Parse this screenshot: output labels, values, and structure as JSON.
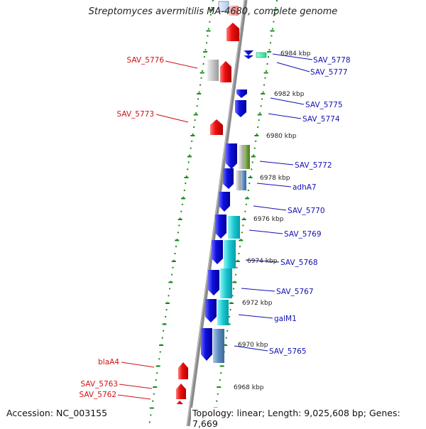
{
  "title": "Streptomyces avermitilis MA-4680, complete genome",
  "footer": {
    "accession": "Accession: NC_003155",
    "topology": "Topology: linear; Length: 9,025,608 bp; Genes: 7,669"
  },
  "ticks": [
    "6984 kbp",
    "6982 kbp",
    "6980 kbp",
    "6978 kbp",
    "6976 kbp",
    "6974 kbp",
    "6972 kbp",
    "6970 kbp",
    "6968 kbp"
  ],
  "left_labels": [
    "SAV_5776",
    "SAV_5773",
    "blaA4",
    "SAV_5763",
    "SAV_5762"
  ],
  "right_labels": [
    "SAV_5778",
    "SAV_5777",
    "SAV_5775",
    "SAV_5774",
    "SAV_5772",
    "adhA7",
    "SAV_5770",
    "SAV_5769",
    "SAV_5768",
    "SAV_5767",
    "galM1",
    "SAV_5765"
  ],
  "colors": {
    "forward_gene": "#ee1111",
    "reverse_gene": "#1010e0",
    "label_left": "#d01010",
    "label_right": "#1010b0",
    "ruler": "#1a8a1a",
    "backbone": "#888888",
    "tick_text": "#222222"
  }
}
